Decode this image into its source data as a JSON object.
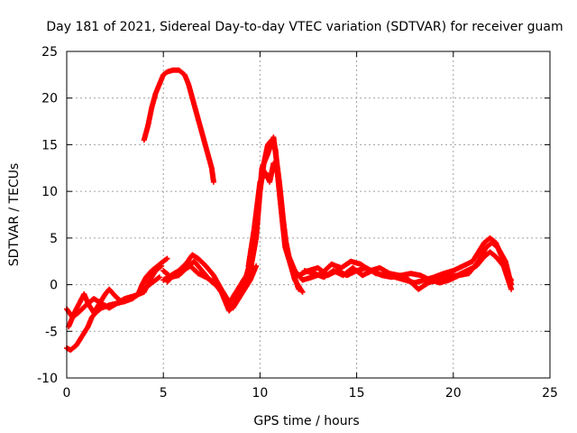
{
  "chart_data": {
    "type": "scatter",
    "title": "Day 181 of 2021, Sidereal Day-to-day VTEC variation (SDTVAR) for receiver guam",
    "xlabel": "GPS time / hours",
    "ylabel": "SDTVAR / TECUs",
    "xlim": [
      0,
      25
    ],
    "ylim": [
      -10,
      25
    ],
    "xticks": [
      0,
      5,
      10,
      15,
      20,
      25
    ],
    "yticks": [
      -10,
      -5,
      0,
      5,
      10,
      15,
      20,
      25
    ],
    "xtick_labels": [
      "0",
      "5",
      "10",
      "15",
      "20",
      "25"
    ],
    "ytick_labels": [
      "-10",
      "-5",
      "0",
      "5",
      "10",
      "15",
      "20",
      "25"
    ],
    "grid": true,
    "marker": "plus",
    "series": [
      {
        "name": "SDTVAR",
        "color": "#ff0000",
        "segments": [
          [
            [
              0.0,
              -6.8
            ],
            [
              0.2,
              -7.0
            ],
            [
              0.5,
              -6.5
            ],
            [
              0.8,
              -5.5
            ],
            [
              1.1,
              -4.5
            ],
            [
              1.3,
              -3.5
            ],
            [
              1.5,
              -3.0
            ],
            [
              1.8,
              -2.5
            ],
            [
              2.2,
              -2.2
            ],
            [
              2.6,
              -2.0
            ],
            [
              3.0,
              -1.8
            ],
            [
              3.4,
              -1.5
            ],
            [
              3.7,
              -1.0
            ],
            [
              3.9,
              0.0
            ],
            [
              4.1,
              0.8
            ],
            [
              4.4,
              1.5
            ],
            [
              4.7,
              2.0
            ],
            [
              5.0,
              2.5
            ],
            [
              5.2,
              2.8
            ]
          ],
          [
            [
              0.0,
              -2.6
            ],
            [
              0.3,
              -3.5
            ],
            [
              0.6,
              -3.0
            ],
            [
              1.0,
              -2.2
            ],
            [
              1.4,
              -1.5
            ],
            [
              1.8,
              -2.0
            ],
            [
              2.2,
              -2.5
            ],
            [
              2.6,
              -2.0
            ],
            [
              3.0,
              -1.5
            ],
            [
              3.5,
              -1.2
            ],
            [
              4.0,
              -0.8
            ],
            [
              4.3,
              0.5
            ],
            [
              4.6,
              1.5
            ],
            [
              4.9,
              2.0
            ]
          ],
          [
            [
              0.1,
              -4.5
            ],
            [
              0.4,
              -3.0
            ],
            [
              0.7,
              -1.8
            ],
            [
              0.9,
              -1.0
            ],
            [
              1.1,
              -2.0
            ],
            [
              1.4,
              -3.0
            ],
            [
              1.7,
              -2.0
            ],
            [
              2.0,
              -1.0
            ],
            [
              2.2,
              -0.5
            ],
            [
              2.5,
              -1.2
            ],
            [
              2.8,
              -1.8
            ],
            [
              3.2,
              -1.5
            ],
            [
              3.6,
              -1.2
            ],
            [
              4.0,
              -0.5
            ],
            [
              4.4,
              0.2
            ],
            [
              4.8,
              0.8
            ]
          ],
          [
            [
              5.0,
              0.5
            ],
            [
              5.4,
              1.0
            ],
            [
              5.8,
              1.5
            ],
            [
              6.2,
              2.3
            ],
            [
              6.5,
              3.2
            ],
            [
              6.8,
              2.8
            ],
            [
              7.2,
              2.0
            ],
            [
              7.6,
              1.0
            ],
            [
              8.0,
              -0.5
            ],
            [
              8.3,
              -1.5
            ],
            [
              8.6,
              -2.5
            ],
            [
              8.9,
              -1.5
            ],
            [
              9.2,
              -0.5
            ],
            [
              9.5,
              0.5
            ],
            [
              9.8,
              2.0
            ]
          ],
          [
            [
              5.0,
              1.5
            ],
            [
              5.4,
              0.8
            ],
            [
              5.8,
              1.0
            ],
            [
              6.2,
              1.8
            ],
            [
              6.6,
              2.5
            ],
            [
              7.0,
              1.5
            ],
            [
              7.4,
              0.5
            ],
            [
              7.8,
              -0.2
            ],
            [
              8.1,
              -1.0
            ],
            [
              8.4,
              -2.0
            ],
            [
              8.7,
              -1.0
            ],
            [
              9.0,
              0.0
            ],
            [
              9.3,
              1.0
            ],
            [
              9.5,
              2.5
            ]
          ],
          [
            [
              5.2,
              0.3
            ],
            [
              5.6,
              1.2
            ],
            [
              6.0,
              1.5
            ],
            [
              6.4,
              2.0
            ],
            [
              6.8,
              1.2
            ],
            [
              7.2,
              0.8
            ],
            [
              7.6,
              0.3
            ],
            [
              8.0,
              -0.8
            ],
            [
              8.4,
              -2.8
            ],
            [
              8.7,
              -2.0
            ],
            [
              9.0,
              -0.5
            ],
            [
              9.3,
              0.3
            ],
            [
              9.5,
              1.0
            ]
          ],
          [
            [
              9.5,
              1.5
            ],
            [
              9.8,
              5.0
            ],
            [
              10.0,
              10.0
            ],
            [
              10.2,
              13.0
            ],
            [
              10.4,
              15.0
            ],
            [
              10.6,
              15.5
            ],
            [
              10.8,
              14.5
            ],
            [
              11.0,
              10.0
            ],
            [
              11.2,
              6.0
            ],
            [
              11.5,
              3.0
            ],
            [
              11.8,
              1.5
            ],
            [
              12.2,
              0.5
            ]
          ],
          [
            [
              9.4,
              2.0
            ],
            [
              9.7,
              6.0
            ],
            [
              10.0,
              11.0
            ],
            [
              10.3,
              12.0
            ],
            [
              10.5,
              11.0
            ],
            [
              10.7,
              13.0
            ],
            [
              10.9,
              12.0
            ],
            [
              11.1,
              8.0
            ],
            [
              11.3,
              4.0
            ],
            [
              11.6,
              2.0
            ],
            [
              12.0,
              -0.5
            ]
          ],
          [
            [
              9.6,
              3.0
            ],
            [
              9.9,
              8.0
            ],
            [
              10.1,
              12.5
            ],
            [
              10.4,
              14.0
            ],
            [
              10.7,
              15.8
            ],
            [
              11.0,
              11.0
            ],
            [
              11.2,
              7.0
            ],
            [
              11.4,
              3.5
            ],
            [
              11.8,
              0.5
            ],
            [
              12.2,
              -0.8
            ]
          ],
          [
            [
              12.0,
              1.0
            ],
            [
              12.5,
              1.5
            ],
            [
              13.0,
              1.8
            ],
            [
              13.5,
              1.0
            ],
            [
              14.0,
              1.5
            ],
            [
              14.5,
              1.0
            ],
            [
              15.0,
              1.5
            ],
            [
              15.5,
              1.8
            ],
            [
              16.0,
              1.2
            ],
            [
              16.5,
              1.0
            ],
            [
              17.0,
              0.8
            ],
            [
              17.5,
              0.5
            ],
            [
              18.0,
              0.2
            ],
            [
              18.5,
              0.5
            ],
            [
              19.0,
              0.8
            ],
            [
              19.5,
              1.2
            ],
            [
              20.0,
              1.5
            ],
            [
              20.5,
              2.0
            ],
            [
              21.0,
              2.5
            ],
            [
              21.3,
              3.5
            ],
            [
              21.6,
              4.5
            ],
            [
              21.9,
              5.0
            ],
            [
              22.2,
              4.5
            ],
            [
              22.5,
              3.0
            ],
            [
              22.8,
              1.0
            ],
            [
              23.0,
              0.5
            ]
          ],
          [
            [
              12.2,
              0.5
            ],
            [
              12.7,
              0.8
            ],
            [
              13.2,
              1.2
            ],
            [
              13.7,
              2.2
            ],
            [
              14.2,
              1.8
            ],
            [
              14.7,
              2.5
            ],
            [
              15.2,
              2.2
            ],
            [
              15.7,
              1.5
            ],
            [
              16.2,
              1.8
            ],
            [
              16.7,
              1.2
            ],
            [
              17.2,
              1.0
            ],
            [
              17.7,
              0.5
            ],
            [
              18.2,
              -0.5
            ],
            [
              18.7,
              0.2
            ],
            [
              19.2,
              0.5
            ],
            [
              19.7,
              0.8
            ],
            [
              20.2,
              1.0
            ],
            [
              20.7,
              1.5
            ],
            [
              21.2,
              2.0
            ],
            [
              21.6,
              3.0
            ],
            [
              21.9,
              3.5
            ],
            [
              22.2,
              3.0
            ],
            [
              22.6,
              2.0
            ],
            [
              23.0,
              -0.5
            ]
          ],
          [
            [
              12.3,
              1.5
            ],
            [
              12.8,
              1.2
            ],
            [
              13.3,
              0.8
            ],
            [
              13.8,
              1.5
            ],
            [
              14.3,
              1.0
            ],
            [
              14.8,
              1.8
            ],
            [
              15.3,
              1.0
            ],
            [
              15.8,
              1.5
            ],
            [
              16.3,
              1.0
            ],
            [
              16.8,
              0.8
            ],
            [
              17.3,
              1.0
            ],
            [
              17.8,
              1.2
            ],
            [
              18.3,
              1.0
            ],
            [
              18.8,
              0.5
            ],
            [
              19.3,
              0.2
            ],
            [
              19.8,
              0.5
            ],
            [
              20.3,
              1.0
            ],
            [
              20.8,
              1.2
            ],
            [
              21.3,
              2.5
            ],
            [
              21.7,
              4.0
            ],
            [
              22.0,
              4.5
            ],
            [
              22.3,
              4.0
            ],
            [
              22.7,
              2.5
            ],
            [
              23.0,
              0.0
            ]
          ],
          [
            [
              4.0,
              15.5
            ],
            [
              4.2,
              17.0
            ],
            [
              4.4,
              19.0
            ],
            [
              4.6,
              20.5
            ],
            [
              4.8,
              21.5
            ],
            [
              5.0,
              22.5
            ],
            [
              5.2,
              22.8
            ],
            [
              5.5,
              23.0
            ],
            [
              5.8,
              23.0
            ],
            [
              6.1,
              22.5
            ],
            [
              6.3,
              21.5
            ],
            [
              6.5,
              20.0
            ],
            [
              6.7,
              18.5
            ],
            [
              6.9,
              17.0
            ],
            [
              7.1,
              15.5
            ],
            [
              7.3,
              14.0
            ],
            [
              7.5,
              12.5
            ],
            [
              7.6,
              11.0
            ]
          ]
        ]
      }
    ]
  }
}
